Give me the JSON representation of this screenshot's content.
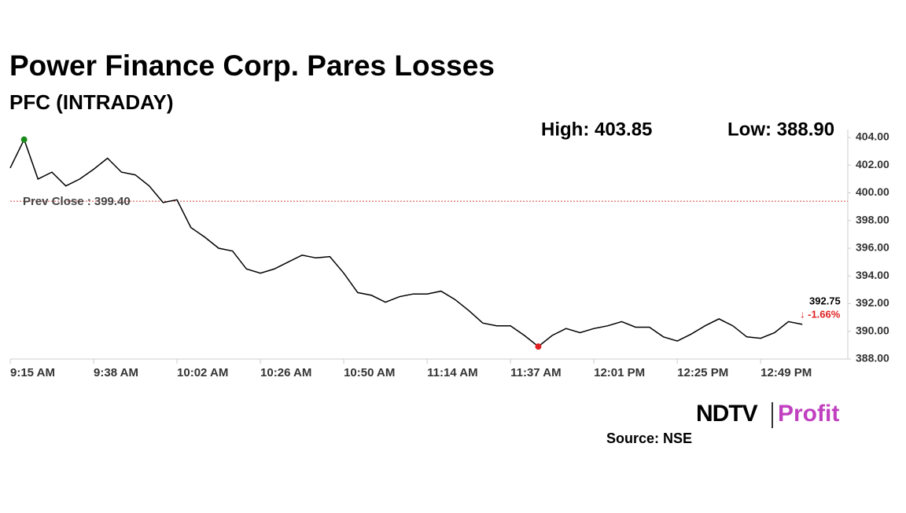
{
  "chart_data": {
    "type": "line",
    "title": "Power Finance Corp. Pares Losses",
    "subtitle": "PFC (INTRADAY)",
    "high_label": "High: 403.85",
    "low_label": "Low: 388.90",
    "categories": [
      "9:15 AM",
      null,
      null,
      null,
      null,
      null,
      "9:38 AM",
      null,
      null,
      null,
      null,
      null,
      "10:02 AM",
      null,
      null,
      null,
      null,
      null,
      "10:26 AM",
      null,
      null,
      null,
      null,
      null,
      "10:50 AM",
      null,
      null,
      null,
      null,
      null,
      "11:14 AM",
      null,
      null,
      null,
      null,
      null,
      "11:37 AM",
      null,
      null,
      null,
      null,
      null,
      "12:01 PM",
      null,
      null,
      null,
      null,
      null,
      "12:25 PM",
      null,
      null,
      null,
      null,
      null,
      "12:49 PM",
      null,
      null,
      null
    ],
    "series": [
      {
        "color": "#000000",
        "values": [
          401.8,
          403.85,
          401,
          401.5,
          400.5,
          401,
          401.7,
          402.5,
          401.5,
          401.3,
          400.5,
          399.3,
          399.5,
          397.5,
          396.8,
          396,
          395.8,
          394.5,
          394.2,
          394.5,
          395,
          395.5,
          395.3,
          395.4,
          394.2,
          392.8,
          392.6,
          392.1,
          392.5,
          392.7,
          392.7,
          392.9,
          392.3,
          391.5,
          390.6,
          390.4,
          390.4,
          389.7,
          388.9,
          389.7,
          390.2,
          389.9,
          390.2,
          390.4,
          390.7,
          390.3,
          390.3,
          389.6,
          389.3,
          389.8,
          390.4,
          390.9,
          390.4,
          389.6,
          389.5,
          389.9,
          390.7,
          390.5
        ]
      }
    ],
    "high_index": 1,
    "high_color": "#1a8a1a",
    "low_index": 38,
    "low_color": "#e02020",
    "prev_close": {
      "value": 399.4,
      "label": "Prev Close : 399.40",
      "color": "#d04040"
    },
    "last_price": "392.75",
    "change": "↓ -1.66%",
    "ylim": [
      388,
      404
    ],
    "yticks": [
      {
        "value": 388,
        "label": "388.00"
      },
      {
        "value": 390,
        "label": "390.00"
      },
      {
        "value": 392,
        "label": "392.00"
      },
      {
        "value": 394,
        "label": "394.00"
      },
      {
        "value": 396,
        "label": "396.00"
      },
      {
        "value": 398,
        "label": "398.00"
      },
      {
        "value": 400,
        "label": "400.00"
      },
      {
        "value": 402,
        "label": "402.00"
      },
      {
        "value": 404,
        "label": "404.00"
      }
    ],
    "grid": false,
    "logo": {
      "left": "NDTV",
      "right": "Profit"
    },
    "source": "Source: NSE"
  }
}
